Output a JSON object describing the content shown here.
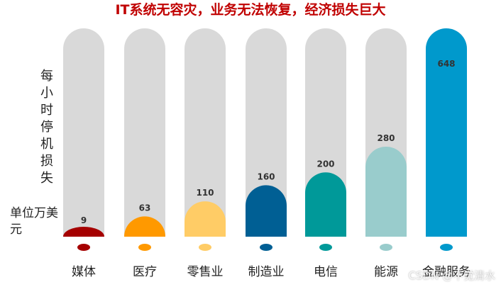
{
  "chart_data": {
    "type": "bar",
    "title": "IT系统无容灾，业务无法恢复，经济损失巨大",
    "ylabel": "每小时停机损失",
    "unit": "单位万美元",
    "categories": [
      "媒体",
      "医疗",
      "零售业",
      "制造业",
      "电信",
      "能源",
      "金融服务"
    ],
    "values": [
      9,
      63,
      110,
      160,
      200,
      280,
      648
    ],
    "colors": [
      "#a50000",
      "#ff9900",
      "#ffcc66",
      "#005f94",
      "#009999",
      "#99cccc",
      "#0099cc"
    ],
    "track_color": "#d9d9d9",
    "ylim": [
      0,
      648
    ],
    "grid": false,
    "legend": "none"
  },
  "watermark": "CSDN @不觉清水"
}
